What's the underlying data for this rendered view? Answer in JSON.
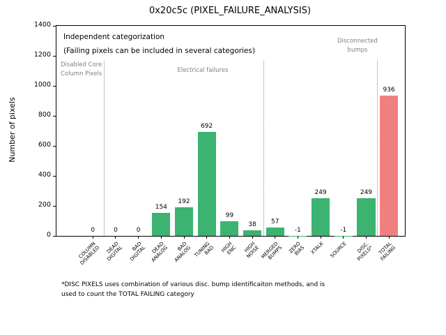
{
  "chart_data": {
    "type": "bar",
    "title": "0x20c5c (PIXEL_FAILURE_ANALYSIS)",
    "ylabel": "Number of pixels",
    "ylim": [
      0,
      1400
    ],
    "yticks": [
      0,
      200,
      400,
      600,
      800,
      1000,
      1200,
      1400
    ],
    "categories": [
      "COLUMN\nDISABLED",
      "DEAD\nDIGITAL",
      "BAD\nDIGITAL",
      "DEAD\nANALOG",
      "BAD\nANALOG",
      "TUNING\nBAD",
      "HIGH\nENC",
      "HIGH\nNOISE",
      "MERGED\nBUMPS",
      "ZERO\nBIAS",
      "XTALK",
      "SOURCE",
      "DISC.\nPIXELS*",
      "TOTAL\nFAILING"
    ],
    "values": [
      0,
      0,
      0,
      154,
      192,
      692,
      99,
      38,
      57,
      -1,
      249,
      -1,
      249,
      936
    ],
    "bar_value_labels": [
      "0",
      "0",
      "0",
      "154",
      "192",
      "692",
      "99",
      "38",
      "57",
      "-1",
      "249",
      "-1",
      "249",
      "936"
    ],
    "colors": {
      "bar": "#3cb371",
      "total_bar": "#f08080",
      "region_label": "#808080",
      "separator": "#8a8a8a"
    },
    "separators_x": [
      0.5,
      7.5,
      12.5
    ],
    "region_labels": [
      {
        "text": "Disabled Core\nColumn Pixels"
      },
      {
        "text": "Electrical failures"
      },
      {
        "text": "Disconnected\nbumps"
      }
    ],
    "annotation": "Independent categorization\n(Failing pixels can be included in several categories)",
    "footnote": "*DISC PIXELS uses combination of various disc. bump identificaiton methods, and is\nused to count the TOTAL FAILING category",
    "legend": "none",
    "grid": "off"
  }
}
